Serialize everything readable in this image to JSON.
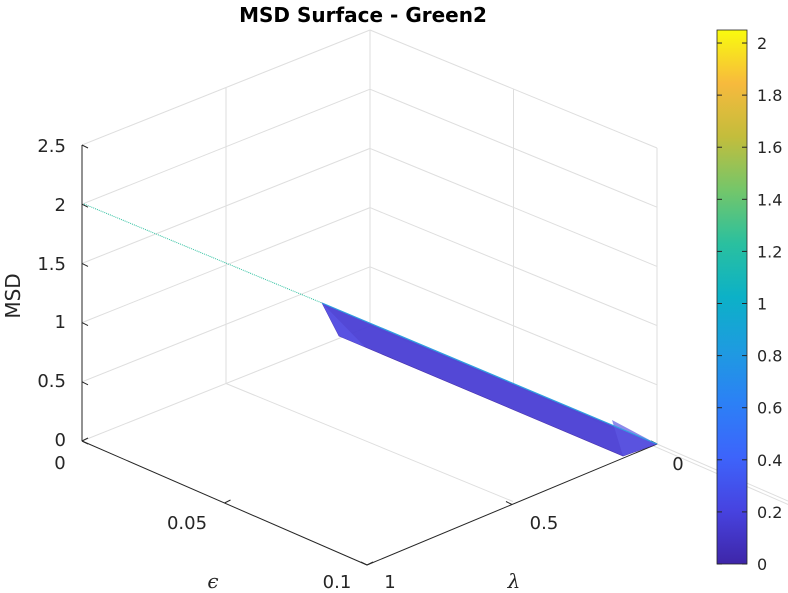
{
  "chart_data": {
    "type": "surface",
    "title": "MSD Surface - Green2",
    "zlabel": "MSD",
    "xlabel": "ϵ",
    "ylabel": "λ",
    "xlim": [
      0,
      0.1
    ],
    "ylim": [
      0,
      1
    ],
    "zlim": [
      0,
      2.5
    ],
    "x_ticks": [
      "0",
      "0.05",
      "0.1"
    ],
    "y_ticks": [
      "0",
      "0.5",
      "1"
    ],
    "z_ticks": [
      "0",
      "0.5",
      "1",
      "1.5",
      "2",
      "2.5"
    ],
    "grid": true,
    "colormap": "parula",
    "colorbar": {
      "range": [
        0,
        2.05
      ],
      "ticks": [
        "0",
        "0.2",
        "0.4",
        "0.6",
        "0.8",
        "1",
        "1.2",
        "1.4",
        "1.6",
        "1.8",
        "2"
      ]
    },
    "surface": {
      "description_series": [
        {
          "eps": 0,
          "lambda": 0,
          "msd": 0
        },
        {
          "eps": 0,
          "lambda": 0.5,
          "msd": 0
        },
        {
          "eps": 0,
          "lambda": 1,
          "msd": 1.05
        },
        {
          "eps": 0,
          "lambda": 1,
          "msd": 2.0
        }
      ]
    }
  }
}
